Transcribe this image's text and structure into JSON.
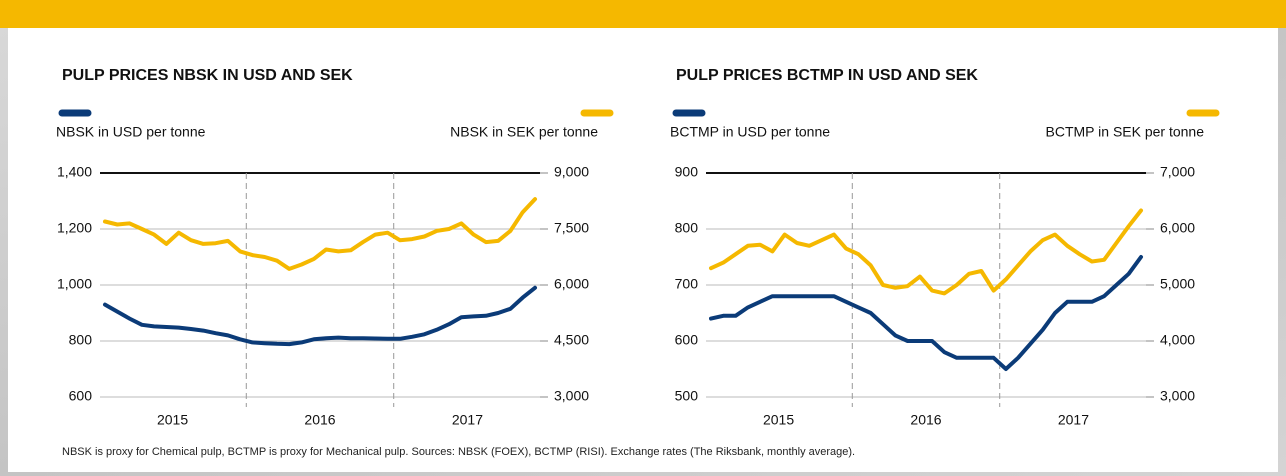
{
  "chart_data": [
    {
      "type": "line",
      "title": "PULP PRICES NBSK IN USD AND SEK",
      "categories": [
        null,
        null,
        null,
        null,
        null,
        null,
        "2015",
        null,
        null,
        null,
        null,
        null,
        null,
        null,
        null,
        null,
        null,
        null,
        "2016",
        null,
        null,
        null,
        null,
        null,
        null,
        null,
        null,
        null,
        null,
        null,
        "2017",
        null,
        null,
        null,
        null,
        null
      ],
      "series": [
        {
          "name": "NBSK in USD per tonne",
          "color": "#0b3b78",
          "values": [
            930,
            905,
            880,
            858,
            852,
            850,
            848,
            843,
            837,
            828,
            820,
            806,
            795,
            792,
            790,
            789,
            795,
            806,
            810,
            812,
            810,
            810,
            809,
            808,
            808,
            815,
            824,
            840,
            860,
            885,
            888,
            890,
            900,
            915,
            955,
            990
          ]
        },
        {
          "name": "NBSK in SEK per tonne",
          "color": "#f5b800",
          "axis": "y2",
          "values": [
            7700,
            7620,
            7650,
            7500,
            7350,
            7100,
            7400,
            7200,
            7100,
            7120,
            7180,
            6900,
            6800,
            6750,
            6650,
            6430,
            6550,
            6700,
            6950,
            6900,
            6930,
            7150,
            7350,
            7400,
            7200,
            7230,
            7300,
            7450,
            7500,
            7650,
            7350,
            7150,
            7180,
            7450,
            7950,
            8300
          ]
        }
      ],
      "ylim": [
        600,
        1400
      ],
      "yticks": [
        600,
        800,
        {
          "value": 1000,
          "label": "1,000"
        },
        {
          "value": 1200,
          "label": "1,200"
        },
        {
          "value": 1400,
          "label": "1,400"
        }
      ],
      "y2lim": [
        3000,
        9000
      ],
      "y2ticks": [
        {
          "value": 3000,
          "label": "3,000"
        },
        {
          "value": 4500,
          "label": "4,500"
        },
        {
          "value": 6000,
          "label": "6,000"
        },
        {
          "value": 7500,
          "label": "7,500"
        },
        {
          "value": 9000,
          "label": "9,000"
        }
      ],
      "grid": true
    },
    {
      "type": "line",
      "title": "PULP PRICES BCTMP IN USD AND SEK",
      "categories": [
        null,
        null,
        null,
        null,
        null,
        null,
        "2015",
        null,
        null,
        null,
        null,
        null,
        null,
        null,
        null,
        null,
        null,
        null,
        "2016",
        null,
        null,
        null,
        null,
        null,
        null,
        null,
        null,
        null,
        null,
        null,
        "2017",
        null,
        null,
        null,
        null,
        null
      ],
      "series": [
        {
          "name": "BCTMP in USD per tonne",
          "color": "#0b3b78",
          "values": [
            640,
            645,
            645,
            660,
            670,
            680,
            680,
            680,
            680,
            680,
            680,
            670,
            660,
            650,
            630,
            610,
            600,
            600,
            600,
            580,
            570,
            570,
            570,
            570,
            550,
            570,
            595,
            620,
            650,
            670,
            670,
            670,
            680,
            700,
            720,
            750
          ]
        },
        {
          "name": "BCTMP in SEK per tonne",
          "color": "#f5b800",
          "axis": "y2",
          "values": [
            5300,
            5400,
            5550,
            5700,
            5720,
            5600,
            5900,
            5750,
            5700,
            5800,
            5900,
            5650,
            5550,
            5350,
            5000,
            4950,
            4980,
            5150,
            4900,
            4850,
            5000,
            5200,
            5250,
            4900,
            5100,
            5350,
            5600,
            5800,
            5900,
            5700,
            5550,
            5420,
            5450,
            5750,
            6050,
            6330
          ]
        }
      ],
      "ylim": [
        500,
        900
      ],
      "yticks": [
        500,
        600,
        700,
        800,
        900
      ],
      "y2lim": [
        3000,
        7000
      ],
      "y2ticks": [
        {
          "value": 3000,
          "label": "3,000"
        },
        {
          "value": 4000,
          "label": "4,000"
        },
        {
          "value": 5000,
          "label": "5,000"
        },
        {
          "value": 6000,
          "label": "6,000"
        },
        {
          "value": 7000,
          "label": "7,000"
        }
      ],
      "grid": true
    }
  ],
  "footnote": "NBSK is proxy for Chemical pulp, BCTMP is proxy for Mechanical pulp. Sources: NBSK (FOEX), BCTMP (RISI). Exchange rates (The Riksbank, monthly average)."
}
